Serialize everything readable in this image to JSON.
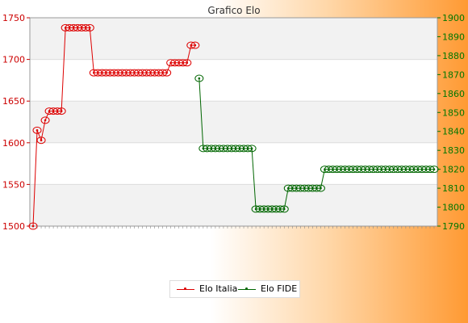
{
  "chart_data": {
    "type": "line",
    "title": "Grafico Elo",
    "xlabel": "",
    "ylabel_left": "",
    "ylabel_right": "",
    "left_axis": {
      "ticks": [
        1500,
        1550,
        1600,
        1650,
        1700,
        1750
      ],
      "ylim": [
        1500,
        1750
      ],
      "color": "#cc0000"
    },
    "right_axis": {
      "ticks": [
        1790,
        1800,
        1810,
        1820,
        1830,
        1840,
        1850,
        1860,
        1870,
        1880,
        1890,
        1900
      ],
      "ylim": [
        1790,
        1900
      ],
      "color": "#007700"
    },
    "grid": true,
    "legend_position": "bottom",
    "n_points": 100,
    "series": [
      {
        "name": "Elo Italia",
        "axis": "left",
        "color": "#dd0000",
        "x": [
          0,
          1,
          2,
          3,
          4,
          5,
          6,
          7,
          8,
          9,
          10,
          11,
          12,
          13,
          14,
          15,
          16,
          17,
          18,
          19,
          20,
          21,
          22,
          23,
          24,
          25,
          26,
          27,
          28,
          29,
          30,
          31,
          32,
          33,
          34,
          35,
          36,
          37,
          38,
          39,
          40
        ],
        "values": [
          1500,
          1615,
          1603,
          1627,
          1638,
          1638,
          1638,
          1638,
          1738,
          1738,
          1738,
          1738,
          1738,
          1738,
          1738,
          1684,
          1684,
          1684,
          1684,
          1684,
          1684,
          1684,
          1684,
          1684,
          1684,
          1684,
          1684,
          1684,
          1684,
          1684,
          1684,
          1684,
          1684,
          1684,
          1696,
          1696,
          1696,
          1696,
          1696,
          1717,
          1717
        ]
      },
      {
        "name": "Elo FIDE",
        "axis": "right",
        "color": "#006600",
        "x": [
          41,
          42,
          43,
          44,
          45,
          46,
          47,
          48,
          49,
          50,
          51,
          52,
          53,
          54,
          55,
          56,
          57,
          58,
          59,
          60,
          61,
          62,
          63,
          64,
          65,
          66,
          67,
          68,
          69,
          70,
          71,
          72,
          73,
          74,
          75,
          76,
          77,
          78,
          79,
          80,
          81,
          82,
          83,
          84,
          85,
          86,
          87,
          88,
          89,
          90,
          91,
          92,
          93,
          94,
          95,
          96,
          97,
          98,
          99
        ],
        "values": [
          1868,
          1831,
          1831,
          1831,
          1831,
          1831,
          1831,
          1831,
          1831,
          1831,
          1831,
          1831,
          1831,
          1831,
          1799,
          1799,
          1799,
          1799,
          1799,
          1799,
          1799,
          1799,
          1810,
          1810,
          1810,
          1810,
          1810,
          1810,
          1810,
          1810,
          1810,
          1820,
          1820,
          1820,
          1820,
          1820,
          1820,
          1820,
          1820,
          1820,
          1820,
          1820,
          1820,
          1820,
          1820,
          1820,
          1820,
          1820,
          1820,
          1820,
          1820,
          1820,
          1820,
          1820,
          1820,
          1820,
          1820,
          1820,
          1820
        ]
      }
    ]
  }
}
